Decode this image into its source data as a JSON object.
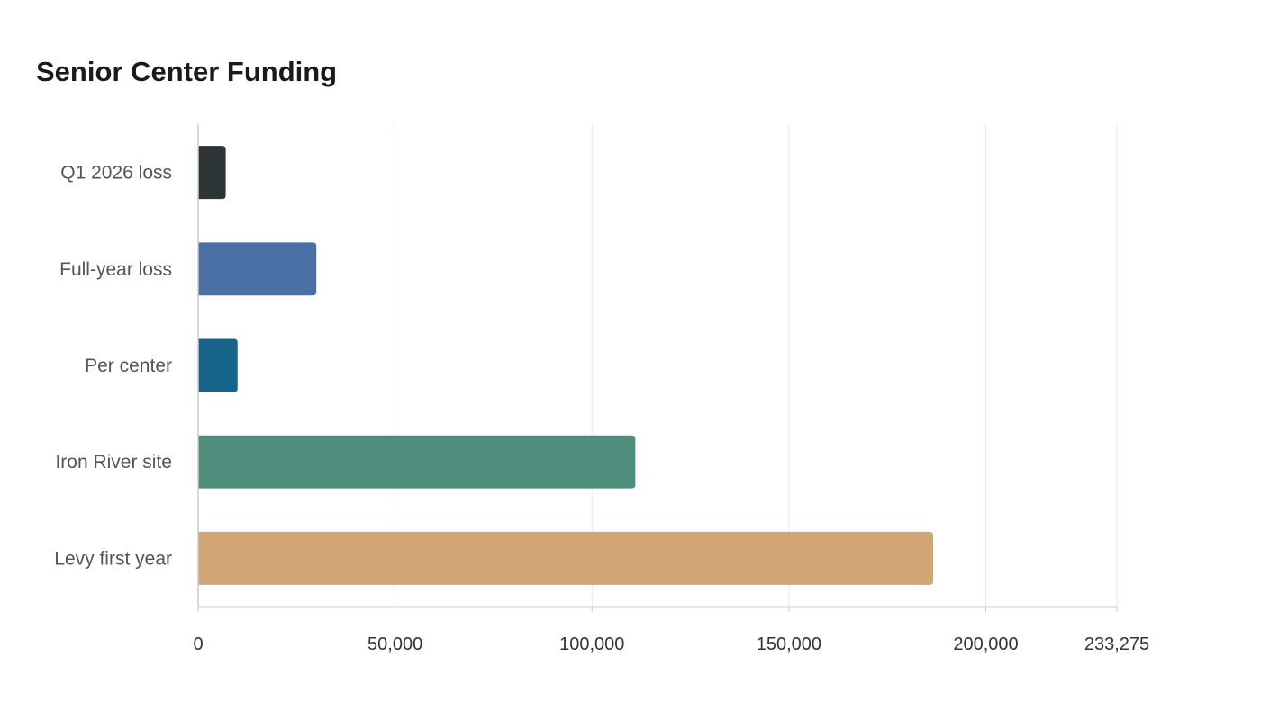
{
  "chart_data": {
    "type": "bar",
    "orientation": "horizontal",
    "title": "Senior Center Funding",
    "xlabel": "",
    "ylabel": "",
    "categories": [
      "Q1 2026 loss",
      "Full-year loss",
      "Per center",
      "Iron River site",
      "Levy first year"
    ],
    "values": [
      7000,
      30000,
      10000,
      111000,
      186625
    ],
    "colors": [
      "#2d3436",
      "#4a6fa5",
      "#17648a",
      "#4f8d7c",
      "#d4a574"
    ],
    "xlim": [
      0,
      233275
    ],
    "x_ticks": [
      0,
      50000,
      100000,
      150000,
      200000,
      233275
    ],
    "x_tick_labels": [
      "0",
      "50,000",
      "100,000",
      "150,000",
      "200,000",
      "233,275"
    ],
    "grid": true,
    "legend": "none"
  }
}
